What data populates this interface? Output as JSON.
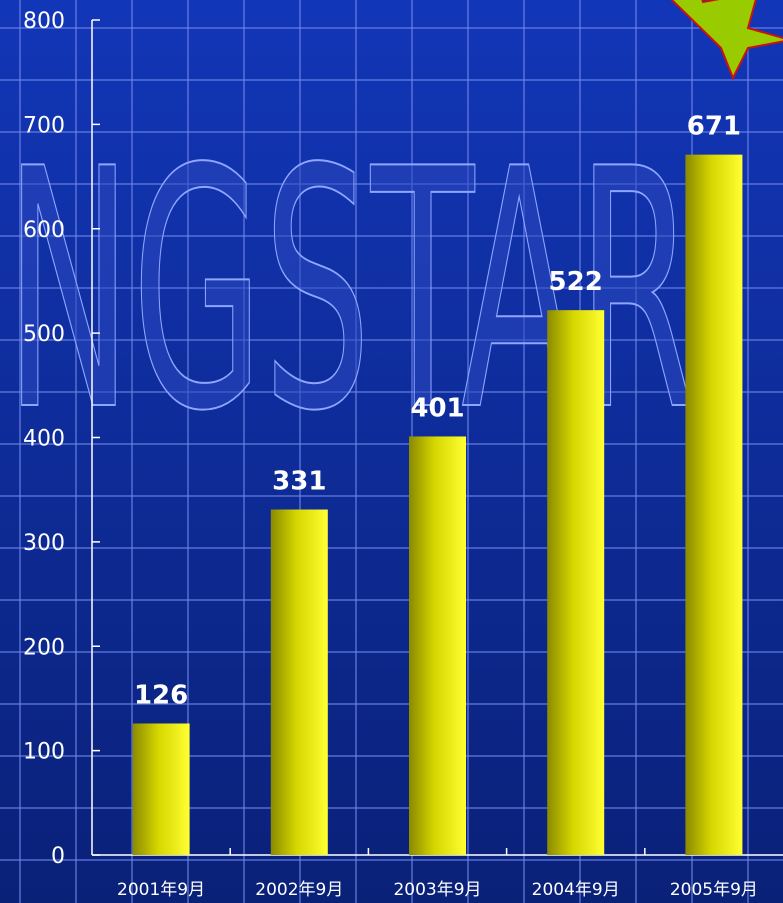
{
  "chart_data": {
    "type": "bar",
    "categories": [
      "2001年9月",
      "2002年9月",
      "2003年9月",
      "2004年9月",
      "2005年9月"
    ],
    "values": [
      126,
      331,
      401,
      522,
      671
    ],
    "ylim": [
      0,
      800
    ],
    "yticks": [
      0,
      100,
      200,
      300,
      400,
      500,
      600,
      700,
      800
    ],
    "title": "",
    "xlabel": "",
    "ylabel": "",
    "grid": true,
    "legend": "none",
    "background_watermark": "NGSTAR",
    "colors": {
      "background_top": "#1236b8",
      "background_bottom": "#0a2178",
      "bar_light": "#ffff33",
      "bar_dark": "#8a8a00",
      "grid": "#6f86e8",
      "text": "#ffffff",
      "star_fill": "#99cc00",
      "star_stroke": "#cc1111"
    }
  }
}
